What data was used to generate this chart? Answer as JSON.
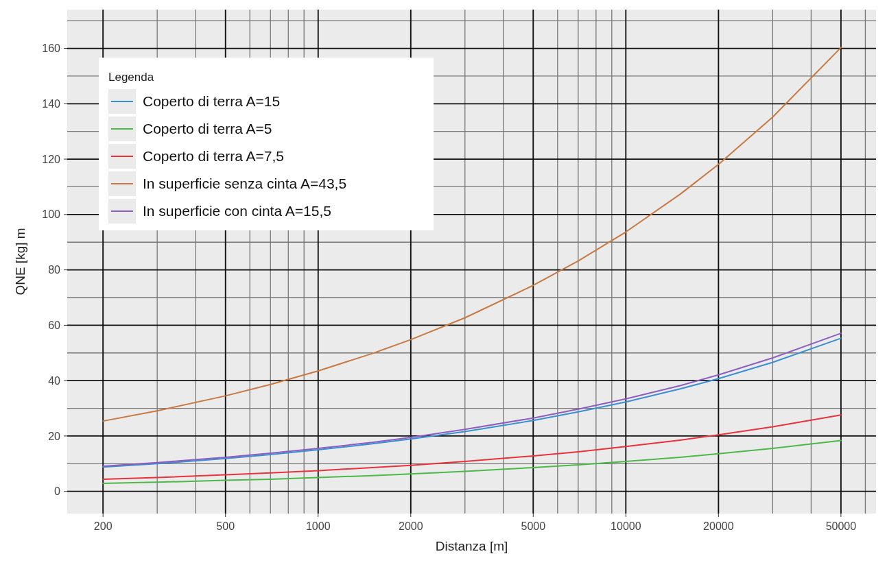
{
  "chart_data": {
    "type": "line",
    "xlabel": "Distanza [m]",
    "ylabel": "QNE [kg] m",
    "legend_title": "Legenda",
    "legend": "top left",
    "grid": true,
    "log": "x",
    "marker": "none",
    "line_style": "solid",
    "x": [
      200,
      300,
      500,
      700,
      1000,
      1500,
      2000,
      3000,
      5000,
      7000,
      10000,
      15000,
      20000,
      30000,
      50000
    ],
    "xlim": [
      153,
      65000
    ],
    "xticks": [
      200,
      500,
      1000,
      2000,
      5000,
      10000,
      20000,
      50000
    ],
    "ylim": [
      -8,
      174
    ],
    "yticks": [
      0,
      20,
      40,
      60,
      80,
      100,
      120,
      140,
      160
    ],
    "series": [
      {
        "name": "Coperto di terra A=15",
        "color": "#3a8fd0",
        "values": [
          8.8,
          10.0,
          11.9,
          13.3,
          15.0,
          17.2,
          18.9,
          21.6,
          25.6,
          28.7,
          32.3,
          37.0,
          40.7,
          46.6,
          55.3
        ]
      },
      {
        "name": "Coperto di terra A=5",
        "color": "#4db848",
        "values": [
          2.9,
          3.3,
          4.0,
          4.4,
          5.0,
          5.7,
          6.3,
          7.2,
          8.6,
          9.6,
          10.8,
          12.3,
          13.6,
          15.5,
          18.4
        ]
      },
      {
        "name": "Coperto di terra A=7,5",
        "color": "#e8333a",
        "values": [
          4.4,
          5.0,
          6.0,
          6.7,
          7.5,
          8.6,
          9.4,
          10.8,
          12.8,
          14.3,
          16.2,
          18.5,
          20.4,
          23.3,
          27.6
        ]
      },
      {
        "name": "In superficie senza cinta A=43,5",
        "color": "#c87941",
        "values": [
          25.4,
          29.1,
          34.5,
          38.6,
          43.5,
          49.8,
          54.8,
          62.7,
          74.4,
          83.2,
          93.7,
          107.3,
          118.1,
          135.2,
          160.3
        ]
      },
      {
        "name": "In superficie con cinta A=15,5",
        "color": "#8b5fbf",
        "values": [
          9.1,
          10.4,
          12.3,
          13.8,
          15.5,
          17.7,
          19.5,
          22.4,
          26.5,
          29.7,
          33.4,
          38.2,
          42.1,
          48.2,
          57.1
        ]
      }
    ]
  }
}
